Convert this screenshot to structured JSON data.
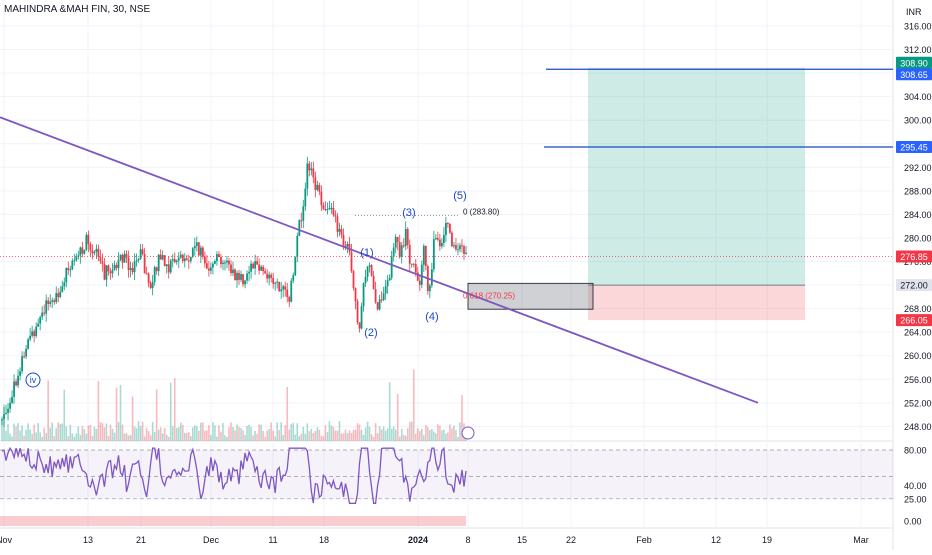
{
  "header": {
    "symbol": "MAHINDRA &MAH FIN, 30, NSE"
  },
  "chart_data": {
    "type": "candlestick",
    "currency": "INR",
    "ylim": [
      246,
      318
    ],
    "y_ticks": [
      316,
      312,
      308,
      304,
      300,
      296,
      292,
      288,
      284,
      280,
      276,
      272,
      268,
      264,
      260,
      256,
      252,
      248
    ],
    "x_ticks": [
      "Nov",
      "13",
      "21",
      "Dec",
      "11",
      "18",
      "2024",
      "8",
      "15",
      "22",
      "Feb",
      "12",
      "19",
      "Mar"
    ],
    "price_path": [
      [
        0,
        249
      ],
      [
        0.03,
        256
      ],
      [
        0.06,
        263
      ],
      [
        0.09,
        268
      ],
      [
        0.12,
        270.5
      ],
      [
        0.14,
        274
      ],
      [
        0.16,
        276
      ],
      [
        0.18,
        279.5
      ],
      [
        0.2,
        278
      ],
      [
        0.22,
        274
      ],
      [
        0.24,
        275
      ],
      [
        0.26,
        277
      ],
      [
        0.28,
        275
      ],
      [
        0.3,
        277
      ],
      [
        0.32,
        271
      ],
      [
        0.34,
        277.5
      ],
      [
        0.36,
        275
      ],
      [
        0.38,
        277
      ],
      [
        0.4,
        276
      ],
      [
        0.42,
        279
      ],
      [
        0.44,
        275
      ],
      [
        0.46,
        277
      ],
      [
        0.48,
        276
      ],
      [
        0.5,
        274
      ],
      [
        0.52,
        273
      ],
      [
        0.54,
        276
      ],
      [
        0.56,
        275
      ],
      [
        0.58,
        273
      ],
      [
        0.6,
        271
      ],
      [
        0.62,
        270
      ],
      [
        0.64,
        282
      ],
      [
        0.65,
        286
      ],
      [
        0.66,
        293
      ],
      [
        0.67,
        290
      ],
      [
        0.68,
        288
      ],
      [
        0.7,
        285
      ],
      [
        0.72,
        283
      ],
      [
        0.73,
        280
      ],
      [
        0.75,
        277
      ],
      [
        0.76,
        269
      ],
      [
        0.77,
        264
      ],
      [
        0.78,
        272
      ],
      [
        0.79,
        277
      ],
      [
        0.8,
        272
      ],
      [
        0.81,
        268
      ],
      [
        0.82,
        269
      ],
      [
        0.83,
        272
      ],
      [
        0.85,
        280
      ],
      [
        0.86,
        277
      ],
      [
        0.87,
        281
      ],
      [
        0.88,
        276
      ],
      [
        0.89,
        276
      ],
      [
        0.9,
        272
      ],
      [
        0.91,
        278
      ],
      [
        0.92,
        270.3
      ],
      [
        0.93,
        279
      ],
      [
        0.95,
        280
      ],
      [
        0.96,
        284
      ],
      [
        0.97,
        279
      ],
      [
        0.98,
        278.5
      ],
      [
        1,
        276.8
      ]
    ],
    "rsi": {
      "levels": [
        80,
        40,
        25,
        0
      ],
      "ylabels": [
        "80.00",
        "40.00",
        "25.00",
        "0.00"
      ]
    },
    "price_labels": [
      {
        "text": "308.90",
        "value": 308.9,
        "color": "#089981"
      },
      {
        "text": "308.65",
        "value": 308.65,
        "color": "#2962ff"
      },
      {
        "text": "295.45",
        "value": 295.45,
        "color": "#2962ff"
      },
      {
        "text": "276.85",
        "value": 276.85,
        "color": "#f23645"
      },
      {
        "text": "272.00",
        "value": 272.0,
        "color": "#e0e3eb"
      },
      {
        "text": "266.05",
        "value": 266.05,
        "color": "#f23645"
      }
    ],
    "horizontal_lines": [
      308.65,
      295.45
    ],
    "position": {
      "entry": 272.0,
      "target": 308.9,
      "stop": 266.05
    },
    "trendline": {
      "from": [
        "Oct",
        300.5
      ],
      "to": [
        "Feb",
        252
      ]
    },
    "fib": [
      {
        "label": "0 (283.80)",
        "value": 283.8
      },
      {
        "label": "0.618 (270.25)",
        "value": 270.25
      }
    ],
    "annotations": {
      "wave_labels": [
        "(1)",
        "(2)",
        "(3)",
        "(4)",
        "(5)"
      ],
      "circle_label": "iv"
    }
  }
}
